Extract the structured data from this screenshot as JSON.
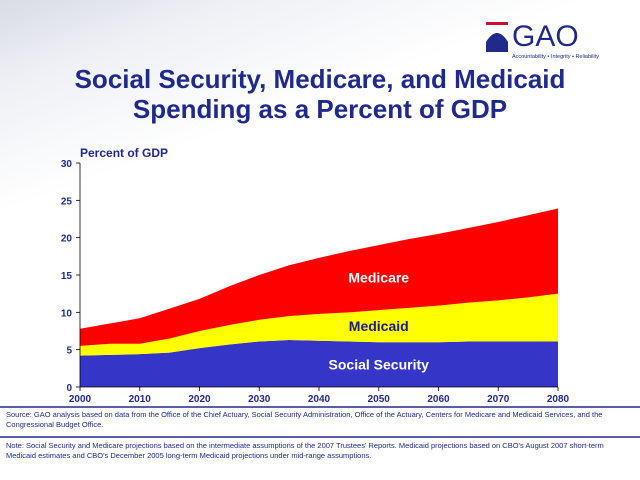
{
  "logo": {
    "text": "GAO",
    "tagline": "Accountability • Integrity • Reliability"
  },
  "chart_data": {
    "type": "stacked_area",
    "title": "Social Security, Medicare, and Medicaid Spending as a Percent of GDP",
    "y_label": "Percent of GDP",
    "x": [
      2000,
      2005,
      2010,
      2015,
      2020,
      2025,
      2030,
      2035,
      2040,
      2045,
      2050,
      2055,
      2060,
      2065,
      2070,
      2075,
      2080
    ],
    "series": [
      {
        "name": "Social Security",
        "color": "#3535c8",
        "label_color": "#ffffff",
        "values": [
          4.2,
          4.3,
          4.4,
          4.6,
          5.2,
          5.7,
          6.1,
          6.3,
          6.2,
          6.1,
          6.0,
          6.0,
          6.0,
          6.1,
          6.1,
          6.1,
          6.1
        ]
      },
      {
        "name": "Medicaid",
        "color": "#ffff00",
        "label_color": "#1a1a8c",
        "values": [
          1.3,
          1.5,
          1.4,
          1.9,
          2.3,
          2.6,
          2.9,
          3.2,
          3.6,
          3.9,
          4.3,
          4.6,
          4.9,
          5.2,
          5.5,
          5.9,
          6.4
        ]
      },
      {
        "name": "Medicare",
        "color": "#ff0000",
        "label_color": "#ffffff",
        "values": [
          2.3,
          2.7,
          3.4,
          4.0,
          4.3,
          5.2,
          6.0,
          6.8,
          7.5,
          8.2,
          8.7,
          9.2,
          9.6,
          10.0,
          10.5,
          11.0,
          11.4
        ]
      }
    ],
    "xlim": [
      2000,
      2080
    ],
    "xticks": [
      2000,
      2010,
      2020,
      2030,
      2040,
      2050,
      2060,
      2070,
      2080
    ],
    "ylim": [
      0,
      30
    ],
    "yticks": [
      0,
      5,
      10,
      15,
      20,
      25,
      30
    ]
  },
  "source": "Source:  GAO analysis based on data from the Office of the Chief Actuary, Social Security Administration, Office of the Actuary, Centers for Medicare and Medicaid Services, and the Congressional Budget Office.",
  "note": "Note:  Social Security and Medicare projections based on the intermediate assumptions of the 2007 Trustees' Reports.  Medicaid projections based on CBO's August 2007 short-term Medicaid estimates and CBO's December 2005 long-term Medicaid projections under mid-range assumptions."
}
